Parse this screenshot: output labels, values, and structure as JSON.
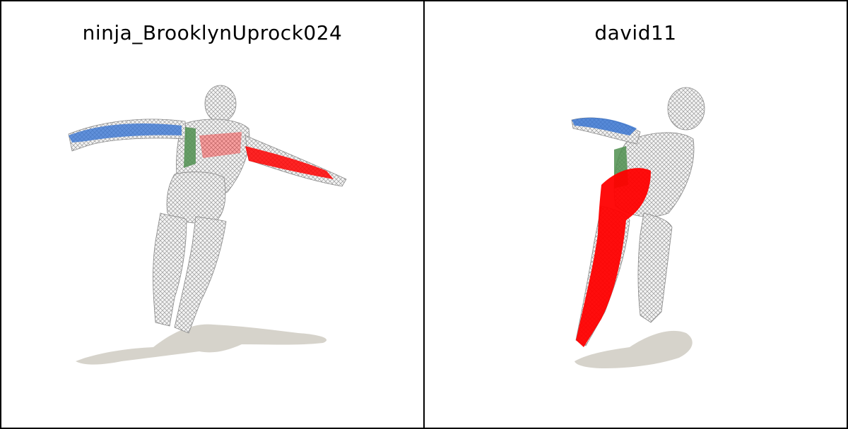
{
  "panels": [
    {
      "title": "ninja_BrooklynUprock024"
    },
    {
      "title": "david11"
    }
  ],
  "colors": {
    "background": "#ffffff",
    "border": "#000000",
    "mesh": "#d9d9d9",
    "mesh_line": "#8a8a8a",
    "shadow": "#d6d3cb",
    "highlight_red": "#ff0000",
    "highlight_blue": "#2f6fd1",
    "highlight_green": "#4f8f4f"
  }
}
